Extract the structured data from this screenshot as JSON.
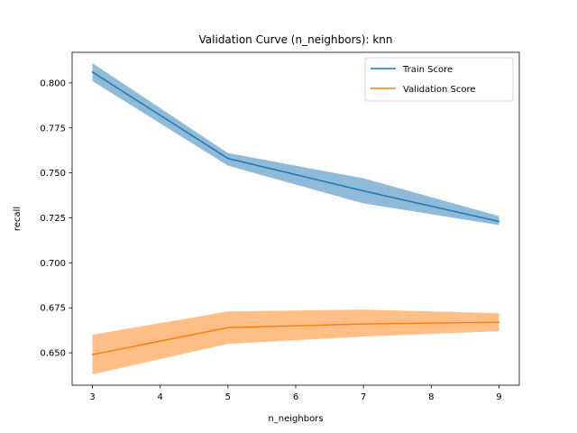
{
  "chart_data": {
    "type": "line",
    "title": "Validation Curve (n_neighbors): knn",
    "xlabel": "n_neighbors",
    "ylabel": "recall",
    "x": [
      3,
      5,
      7,
      9
    ],
    "xticks": [
      3,
      4,
      5,
      6,
      7,
      8,
      9
    ],
    "yticks": [
      0.65,
      0.675,
      0.7,
      0.725,
      0.75,
      0.775,
      0.8
    ],
    "xlim": [
      2.7,
      9.3
    ],
    "ylim": [
      0.632,
      0.817
    ],
    "grid": false,
    "legend_position": "top-right",
    "series": [
      {
        "name": "Train Score",
        "color": "#1f77b4",
        "band_color": "#1f77b4",
        "values": [
          0.806,
          0.758,
          0.74,
          0.723
        ],
        "lower": [
          0.801,
          0.754,
          0.733,
          0.721
        ],
        "upper": [
          0.811,
          0.761,
          0.747,
          0.726
        ]
      },
      {
        "name": "Validation Score",
        "color": "#ff7f0e",
        "band_color": "#ff7f0e",
        "values": [
          0.649,
          0.664,
          0.666,
          0.667
        ],
        "lower": [
          0.638,
          0.655,
          0.659,
          0.662
        ],
        "upper": [
          0.66,
          0.673,
          0.674,
          0.672
        ]
      }
    ]
  }
}
